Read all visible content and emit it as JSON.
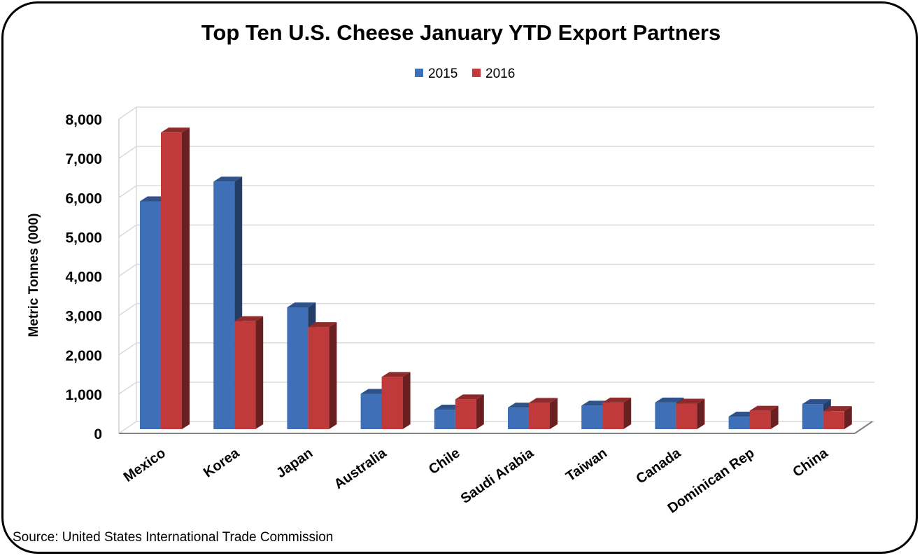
{
  "chart_data": {
    "type": "bar",
    "title": "Top Ten U.S. Cheese January YTD Export Partners",
    "ylabel": "Metric Tonnes (000)",
    "xlabel": "",
    "ylim": [
      0,
      8000
    ],
    "yticks": [
      0,
      1000,
      2000,
      3000,
      4000,
      5000,
      6000,
      7000,
      8000
    ],
    "ytick_labels": [
      "0",
      "1,000",
      "2,000",
      "3,000",
      "4,000",
      "5,000",
      "6,000",
      "7,000",
      "8,000"
    ],
    "grid": true,
    "legend_position": "top-center",
    "categories": [
      "Mexico",
      "Korea",
      "Japan",
      "Australia",
      "Chile",
      "Saudi Arabia",
      "Taiwan",
      "Canada",
      "Dominican Rep",
      "China"
    ],
    "series": [
      {
        "name": "2015",
        "color": "#3f6fb6",
        "values": [
          5800,
          6300,
          3100,
          900,
          500,
          550,
          600,
          680,
          320,
          640
        ]
      },
      {
        "name": "2016",
        "color": "#c0393b",
        "values": [
          7550,
          2750,
          2600,
          1330,
          760,
          670,
          680,
          650,
          470,
          460
        ]
      }
    ],
    "source": "Source: United States International Trade Commission"
  }
}
